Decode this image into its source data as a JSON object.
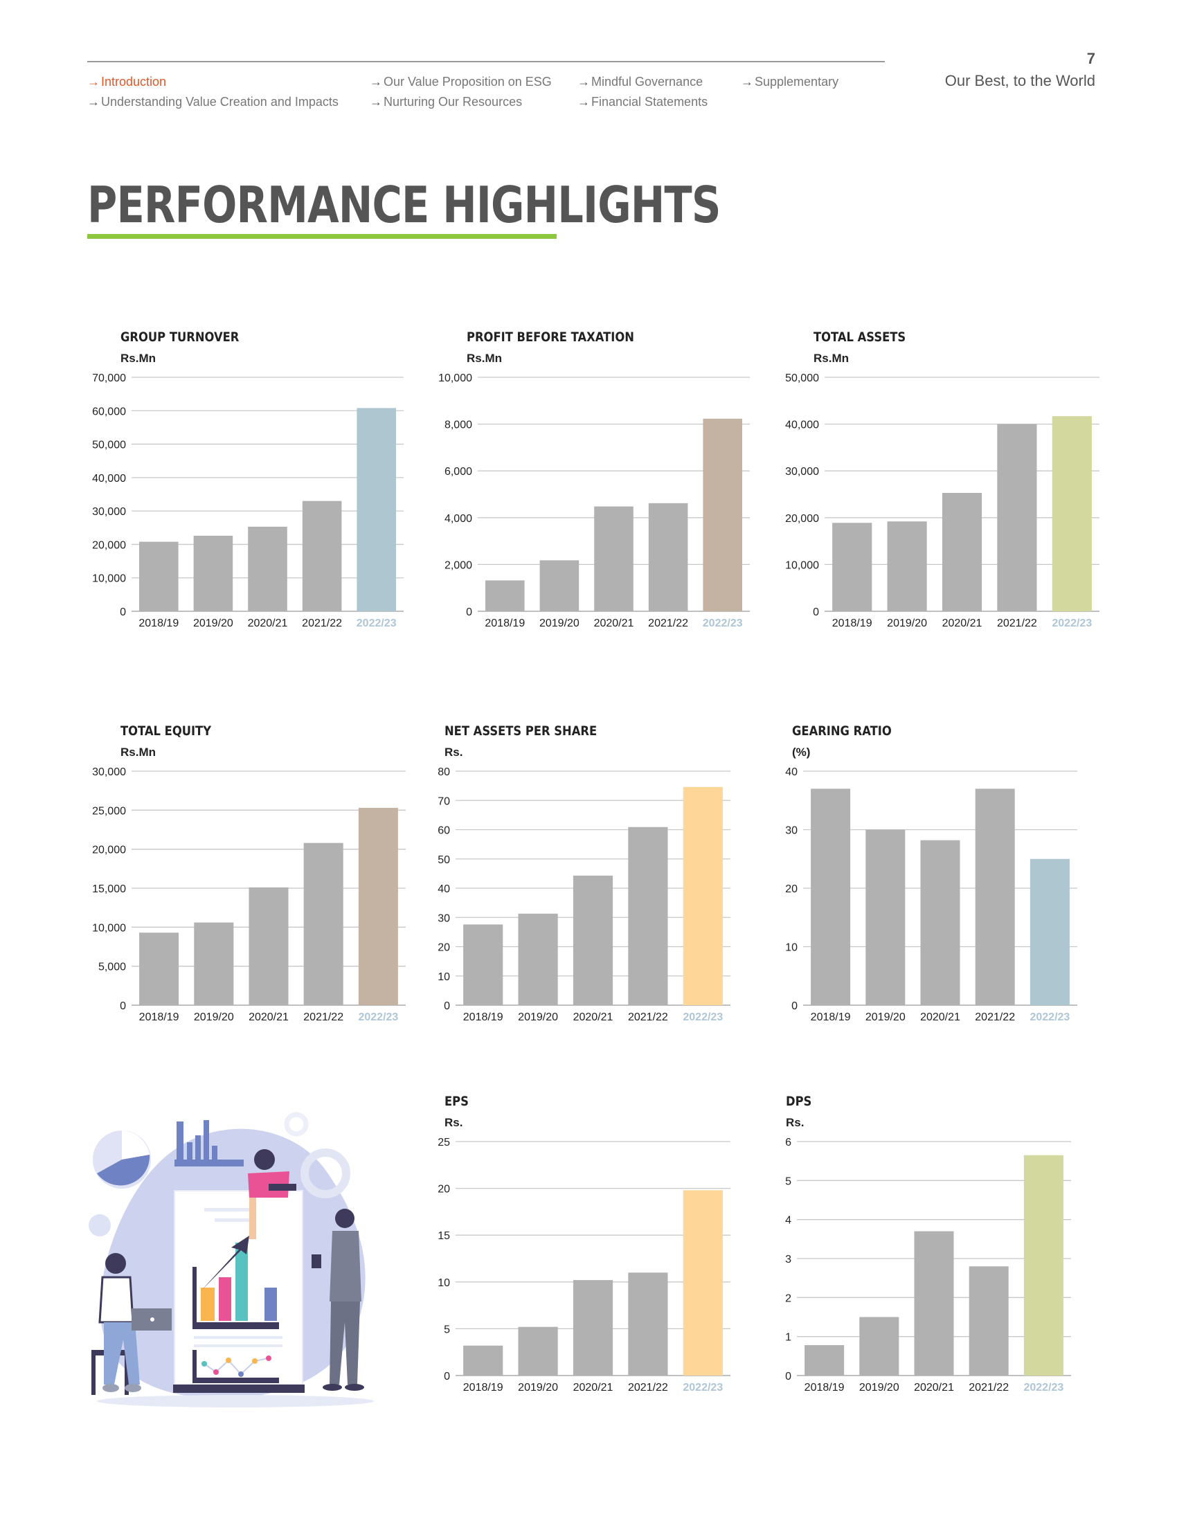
{
  "header": {
    "page_number": "7",
    "tagline": "Our Best, to the World",
    "nav": [
      {
        "label": "Introduction",
        "active": true
      },
      {
        "label": "Our Value Proposition on ESG",
        "active": false
      },
      {
        "label": "Mindful Governance",
        "active": false
      },
      {
        "label": "Supplementary",
        "active": false
      },
      {
        "label": "Understanding Value Creation and Impacts",
        "active": false
      },
      {
        "label": "Nurturing Our Resources",
        "active": false
      },
      {
        "label": "Financial Statements",
        "active": false
      }
    ]
  },
  "page_title": "PERFORMANCE HIGHLIGHTS",
  "colors": {
    "active_nav": "#e0592a",
    "underline": "#8dc63f",
    "bar_grey": "#b1b1b1",
    "blue": "#aec6cf",
    "taupe": "#c4b3a3",
    "green": "#d3d89e",
    "peach": "#fdd698",
    "highlight_label": "#aec6d6"
  },
  "chart_data": [
    {
      "type": "bar",
      "title": "GROUP TURNOVER",
      "ylabel": "Rs.Mn",
      "categories": [
        "2018/19",
        "2019/20",
        "2020/21",
        "2021/22",
        "2022/23"
      ],
      "values": [
        20800,
        22600,
        25300,
        33000,
        60800
      ],
      "ylim": [
        0,
        70000
      ],
      "yticks": [
        "0",
        "10,000",
        "20,000",
        "30,000",
        "40,000",
        "50,000",
        "60,000",
        "70,000"
      ],
      "highlight_color": "#aec6cf"
    },
    {
      "type": "bar",
      "title": "PROFIT BEFORE TAXATION",
      "ylabel": "Rs.Mn",
      "categories": [
        "2018/19",
        "2019/20",
        "2020/21",
        "2021/22",
        "2022/23"
      ],
      "values": [
        1320,
        2180,
        4480,
        4620,
        8230
      ],
      "ylim": [
        0,
        10000
      ],
      "yticks": [
        "0",
        "2,000",
        "4,000",
        "6,000",
        "8,000",
        "10,000"
      ],
      "highlight_color": "#c4b3a3"
    },
    {
      "type": "bar",
      "title": "TOTAL ASSETS",
      "ylabel": "Rs.Mn",
      "categories": [
        "2018/19",
        "2019/20",
        "2020/21",
        "2021/22",
        "2022/23"
      ],
      "values": [
        18900,
        19200,
        25300,
        40000,
        41700
      ],
      "ylim": [
        0,
        50000
      ],
      "yticks": [
        "0",
        "10,000",
        "20,000",
        "30,000",
        "40,000",
        "50,000"
      ],
      "highlight_color": "#d3d89e"
    },
    {
      "type": "bar",
      "title": "TOTAL EQUITY",
      "ylabel": "Rs.Mn",
      "categories": [
        "2018/19",
        "2019/20",
        "2020/21",
        "2021/22",
        "2022/23"
      ],
      "values": [
        9300,
        10600,
        15100,
        20800,
        25300
      ],
      "ylim": [
        0,
        30000
      ],
      "yticks": [
        "0",
        "5,000",
        "10,000",
        "15,000",
        "20,000",
        "25,000",
        "30,000"
      ],
      "highlight_color": "#c4b3a3"
    },
    {
      "type": "bar",
      "title": "NET ASSETS PER SHARE",
      "ylabel": "Rs.",
      "categories": [
        "2018/19",
        "2019/20",
        "2020/21",
        "2021/22",
        "2022/23"
      ],
      "values": [
        27.6,
        31.3,
        44.3,
        60.9,
        74.6
      ],
      "ylim": [
        0,
        80
      ],
      "yticks": [
        "0",
        "10",
        "20",
        "30",
        "40",
        "50",
        "60",
        "70",
        "80"
      ],
      "highlight_color": "#fdd698"
    },
    {
      "type": "bar",
      "title": "GEARING RATIO",
      "ylabel": "(%)",
      "categories": [
        "2018/19",
        "2019/20",
        "2020/21",
        "2021/22",
        "2022/23"
      ],
      "values": [
        37.0,
        30.0,
        28.2,
        37.0,
        25.0
      ],
      "ylim": [
        0,
        40
      ],
      "yticks": [
        "0",
        "10",
        "20",
        "30",
        "40"
      ],
      "highlight_color": "#aec6cf"
    },
    {
      "type": "bar",
      "title": "EPS",
      "ylabel": "Rs.",
      "categories": [
        "2018/19",
        "2019/20",
        "2020/21",
        "2021/22",
        "2022/23"
      ],
      "values": [
        3.2,
        5.2,
        10.2,
        11.0,
        19.8
      ],
      "ylim": [
        0,
        25
      ],
      "yticks": [
        "0",
        "5",
        "10",
        "15",
        "20",
        "25"
      ],
      "highlight_color": "#fdd698"
    },
    {
      "type": "bar",
      "title": "DPS",
      "ylabel": "Rs.",
      "categories": [
        "2018/19",
        "2019/20",
        "2020/21",
        "2021/22",
        "2022/23"
      ],
      "values": [
        0.78,
        1.5,
        3.7,
        2.8,
        5.65
      ],
      "ylim": [
        0,
        6
      ],
      "yticks": [
        "0",
        "1",
        "2",
        "3",
        "4",
        "5",
        "6"
      ],
      "highlight_color": "#d3d89e"
    }
  ]
}
